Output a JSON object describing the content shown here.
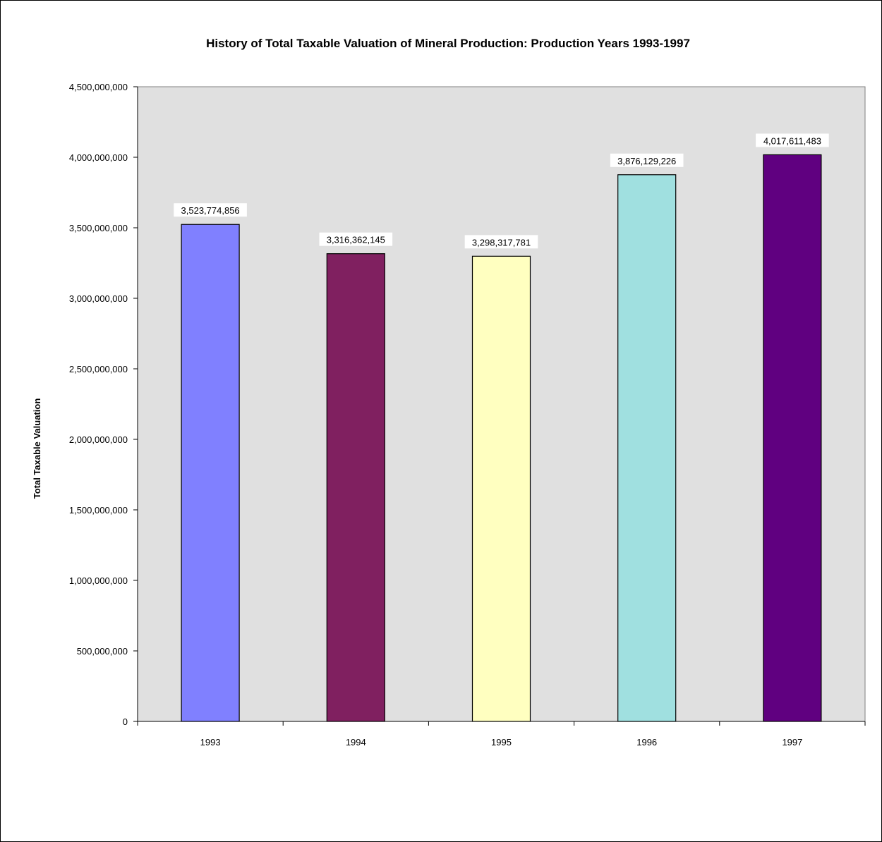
{
  "chart_data": {
    "type": "bar",
    "title": "History of Total Taxable Valuation of Mineral Production: Production Years 1993-1997",
    "xlabel": "",
    "ylabel": "Total Taxable Valuation",
    "categories": [
      "1993",
      "1994",
      "1995",
      "1996",
      "1997"
    ],
    "values": [
      3523774856,
      3316362145,
      3298317781,
      3876129226,
      4017611483
    ],
    "data_labels": [
      "3,523,774,856",
      "3,316,362,145",
      "3,298,317,781",
      "3,876,129,226",
      "4,017,611,483"
    ],
    "bar_colors": [
      "#8080ff",
      "#802060",
      "#ffffc0",
      "#a0e0e0",
      "#600080"
    ],
    "ylim": [
      0,
      4500000000
    ],
    "yticks": [
      0,
      500000000,
      1000000000,
      1500000000,
      2000000000,
      2500000000,
      3000000000,
      3500000000,
      4000000000,
      4500000000
    ],
    "ytick_labels": [
      "0",
      "500,000,000",
      "1,000,000,000",
      "1,500,000,000",
      "2,000,000,000",
      "2,500,000,000",
      "3,000,000,000",
      "3,500,000,000",
      "4,000,000,000",
      "4,500,000,000"
    ],
    "grid": false,
    "legend": "none",
    "plot_background": "#e0e0e0"
  }
}
